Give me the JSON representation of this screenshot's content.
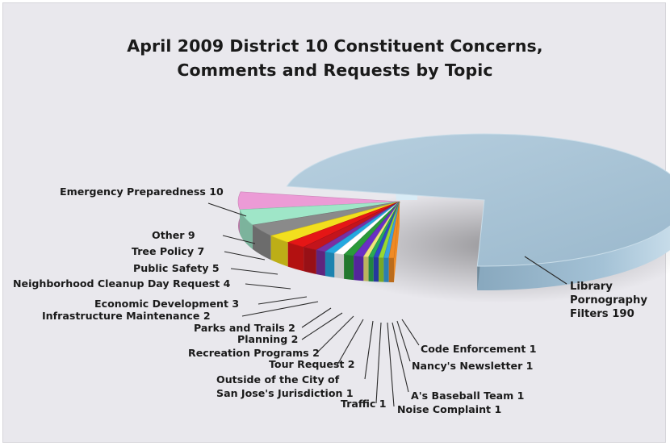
{
  "chart_data": {
    "type": "pie",
    "title_lines": [
      "April 2009 District 10 Constituent Concerns,",
      "Comments and Requests by Topic"
    ],
    "slices": [
      {
        "label_lines": [
          "Library",
          "Pornography",
          "Filters 190"
        ],
        "category": "Library Pornography Filters",
        "value": 190,
        "color": "#a9c5d8"
      },
      {
        "label_lines": [
          "Emergency Preparedness 10"
        ],
        "category": "Emergency Preparedness",
        "value": 10,
        "color": "#ec9bd6"
      },
      {
        "label_lines": [
          "Other 9"
        ],
        "category": "Other",
        "value": 9,
        "color": "#9fe6c8"
      },
      {
        "label_lines": [
          "Tree Policy 7"
        ],
        "category": "Tree Policy",
        "value": 7,
        "color": "#8a8a8a"
      },
      {
        "label_lines": [
          "Public Safety 5"
        ],
        "category": "Public Safety",
        "value": 5,
        "color": "#f2df1e"
      },
      {
        "label_lines": [
          "Neighborhood Cleanup Day Request 4"
        ],
        "category": "Neighborhood Cleanup Day Request",
        "value": 4,
        "color": "#e51616"
      },
      {
        "label_lines": [
          "Economic Development 3"
        ],
        "category": "Economic Development",
        "value": 3,
        "color": "#c3141c"
      },
      {
        "label_lines": [
          "Infrastructure Maintenance 2"
        ],
        "category": "Infrastructure Maintenance",
        "value": 2,
        "color": "#7a2fa2"
      },
      {
        "label_lines": [
          "Parks and Trails 2"
        ],
        "category": "Parks and Trails",
        "value": 2,
        "color": "#24a8e0"
      },
      {
        "label_lines": [
          "Planning 2"
        ],
        "category": "Planning",
        "value": 2,
        "color": "#ffffff"
      },
      {
        "label_lines": [
          "Recreation Programs 2"
        ],
        "category": "Recreation Programs",
        "value": 2,
        "color": "#2a9a3a"
      },
      {
        "label_lines": [
          "Tour Request 2"
        ],
        "category": "Tour Request",
        "value": 2,
        "color": "#6a2fc4"
      },
      {
        "label_lines": [
          "Outside of the City of",
          "San Jose's Jurisdiction 1"
        ],
        "category": "Outside of the City of San Jose's Jurisdiction",
        "value": 1,
        "color": "#f0e67a"
      },
      {
        "label_lines": [
          "Traffic 1"
        ],
        "category": "Traffic",
        "value": 1,
        "color": "#2aaa55"
      },
      {
        "label_lines": [
          "Noise Complaint 1"
        ],
        "category": "Noise Complaint",
        "value": 1,
        "color": "#2f48c8"
      },
      {
        "label_lines": [
          "A's Baseball Team 1"
        ],
        "category": "A's Baseball Team",
        "value": 1,
        "color": "#98d832"
      },
      {
        "label_lines": [
          "Nancy's Newsletter 1"
        ],
        "category": "Nancy's Newsletter",
        "value": 1,
        "color": "#3aa0e0"
      },
      {
        "label_lines": [
          "Code Enforcement 1"
        ],
        "category": "Code Enforcement",
        "value": 1,
        "color": "#f08a24"
      }
    ],
    "exploded": "all slices except Library Pornography Filters",
    "style": "3d-tilted",
    "background": "#e9e8ed"
  }
}
